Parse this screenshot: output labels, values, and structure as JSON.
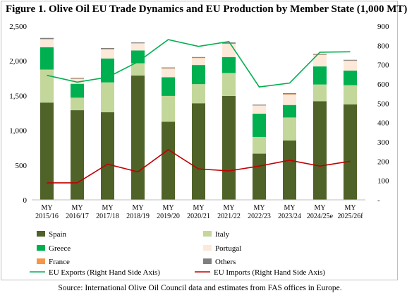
{
  "chart_data": {
    "type": "bar",
    "title": "Figure 1. Olive Oil EU Trade Dynamics and EU Production by Member State (1,000 MT)",
    "stacked": true,
    "categories": [
      [
        "MY",
        "2015/16"
      ],
      [
        "MY",
        "2016/17"
      ],
      [
        "MY",
        "2017/18"
      ],
      [
        "MY",
        "2018/19"
      ],
      [
        "MY",
        "2019/20"
      ],
      [
        "MY",
        "2020/21"
      ],
      [
        "MY",
        "2021/22"
      ],
      [
        "MY",
        "2022/23"
      ],
      [
        "MY",
        "2023/24"
      ],
      [
        "MY",
        "2024/25e"
      ],
      [
        "MY",
        "2025/26f"
      ]
    ],
    "series": [
      {
        "name": "Spain",
        "color": "#4f6228",
        "values": [
          1400,
          1290,
          1260,
          1790,
          1125,
          1390,
          1495,
          665,
          855,
          1420,
          1375
        ]
      },
      {
        "name": "Italy",
        "color": "#c4d79b",
        "values": [
          475,
          180,
          430,
          175,
          370,
          275,
          330,
          240,
          330,
          240,
          275
        ]
      },
      {
        "name": "Greece",
        "color": "#00b050",
        "values": [
          320,
          200,
          345,
          185,
          270,
          275,
          230,
          335,
          180,
          260,
          210
        ]
      },
      {
        "name": "Portugal",
        "color": "#fde9d9",
        "values": [
          115,
          70,
          130,
          100,
          125,
          100,
          190,
          115,
          150,
          165,
          140
        ]
      },
      {
        "name": "France",
        "color": "#f79646",
        "values": [
          6,
          4,
          6,
          4,
          4,
          4,
          6,
          4,
          6,
          4,
          4
        ]
      },
      {
        "name": "Others",
        "color": "#7f7f7f",
        "values": [
          14,
          11,
          14,
          11,
          11,
          11,
          14,
          11,
          14,
          11,
          11
        ]
      }
    ],
    "lines": [
      {
        "name": "EU Exports (Right Hand Side Axis)",
        "color": "#00b050",
        "axis": "right",
        "values": [
          645,
          610,
          635,
          715,
          830,
          795,
          820,
          585,
          605,
          765,
          767
        ]
      },
      {
        "name": "EU Imports (Right Hand Side Axis)",
        "color": "#c00000",
        "axis": "right",
        "values": [
          88,
          88,
          185,
          145,
          260,
          160,
          150,
          175,
          205,
          175,
          200
        ]
      }
    ],
    "y_left": {
      "min": 0,
      "max": 2500,
      "ticks": [
        "0",
        "500",
        "1,000",
        "1,500",
        "2,000",
        "2,500"
      ]
    },
    "y_right": {
      "min": 0,
      "max": 900,
      "ticks": [
        "-",
        "100",
        "200",
        "300",
        "400",
        "500",
        "600",
        "700",
        "800",
        "900"
      ]
    },
    "grid": false,
    "legend_position": "bottom"
  },
  "source": "Source: International Olive Oil Council data and estimates from FAS offices in Europe."
}
